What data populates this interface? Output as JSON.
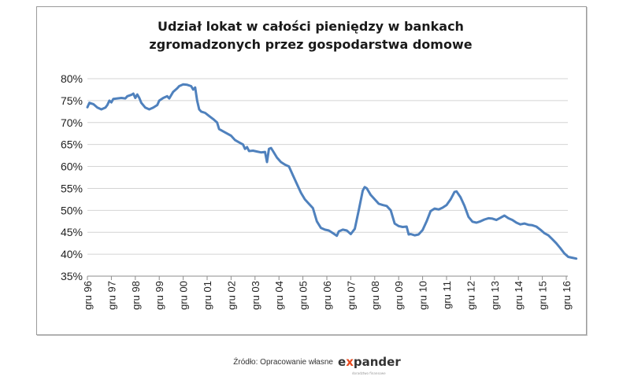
{
  "chart_data": {
    "type": "line",
    "title_lines": [
      "Udział lokat w całości pieniędzy w bankach",
      "zgromadzonych przez gospodarstwa domowe"
    ],
    "xlabel": "",
    "ylabel": "",
    "ylim": [
      35,
      80
    ],
    "y_tick_labels": [
      "35%",
      "40%",
      "45%",
      "50%",
      "55%",
      "60%",
      "65%",
      "70%",
      "75%",
      "80%"
    ],
    "x_tick_labels": [
      "gru 96",
      "gru 97",
      "gru 98",
      "gru 99",
      "gru 00",
      "gru 01",
      "gru 02",
      "gru 03",
      "gru 04",
      "gru 05",
      "gru 06",
      "gru 07",
      "gru 08",
      "gru 09",
      "gru 10",
      "gru 11",
      "gru 12",
      "gru 13",
      "gru 14",
      "gru 15",
      "gru 16"
    ],
    "grid": true,
    "legend": "none",
    "series": [
      {
        "color": "#4f81bd",
        "points": [
          [
            "1996-12",
            73.5
          ],
          [
            "1997-01",
            74.5
          ],
          [
            "1997-03",
            74.2
          ],
          [
            "1997-05",
            73.4
          ],
          [
            "1997-07",
            73.0
          ],
          [
            "1997-09",
            73.4
          ],
          [
            "1997-10",
            74.0
          ],
          [
            "1997-11",
            75.0
          ],
          [
            "1997-12",
            74.6
          ],
          [
            "1998-01",
            75.4
          ],
          [
            "1998-03",
            75.5
          ],
          [
            "1998-05",
            75.6
          ],
          [
            "1998-07",
            75.5
          ],
          [
            "1998-08",
            76.0
          ],
          [
            "1998-10",
            76.3
          ],
          [
            "1998-11",
            76.6
          ],
          [
            "1998-12",
            75.6
          ],
          [
            "1999-01",
            76.4
          ],
          [
            "1999-02",
            75.6
          ],
          [
            "1999-03",
            74.5
          ],
          [
            "1999-05",
            73.4
          ],
          [
            "1999-07",
            73.0
          ],
          [
            "1999-09",
            73.4
          ],
          [
            "1999-11",
            74.0
          ],
          [
            "1999-12",
            75.0
          ],
          [
            "2000-02",
            75.6
          ],
          [
            "2000-04",
            76.0
          ],
          [
            "2000-05",
            75.5
          ],
          [
            "2000-07",
            77.0
          ],
          [
            "2000-09",
            77.8
          ],
          [
            "2000-10",
            78.3
          ],
          [
            "2000-12",
            78.7
          ],
          [
            "2001-02",
            78.6
          ],
          [
            "2001-04",
            78.3
          ],
          [
            "2001-05",
            77.5
          ],
          [
            "2001-06",
            78.0
          ],
          [
            "2001-07",
            75.0
          ],
          [
            "2001-08",
            73.0
          ],
          [
            "2001-09",
            72.5
          ],
          [
            "2001-11",
            72.2
          ],
          [
            "2002-01",
            71.5
          ],
          [
            "2002-03",
            70.8
          ],
          [
            "2002-05",
            70.0
          ],
          [
            "2002-06",
            68.5
          ],
          [
            "2002-08",
            68.0
          ],
          [
            "2002-10",
            67.5
          ],
          [
            "2002-12",
            67.0
          ],
          [
            "2003-02",
            66.0
          ],
          [
            "2003-04",
            65.5
          ],
          [
            "2003-06",
            65.0
          ],
          [
            "2003-07",
            64.0
          ],
          [
            "2003-08",
            64.4
          ],
          [
            "2003-09",
            63.5
          ],
          [
            "2003-11",
            63.6
          ],
          [
            "2004-01",
            63.4
          ],
          [
            "2004-03",
            63.2
          ],
          [
            "2004-05",
            63.3
          ],
          [
            "2004-06",
            61.0
          ],
          [
            "2004-07",
            64.0
          ],
          [
            "2004-08",
            64.2
          ],
          [
            "2004-09",
            63.5
          ],
          [
            "2004-11",
            62.0
          ],
          [
            "2005-01",
            61.0
          ],
          [
            "2005-03",
            60.4
          ],
          [
            "2005-05",
            60.0
          ],
          [
            "2005-07",
            58.0
          ],
          [
            "2005-09",
            56.0
          ],
          [
            "2005-11",
            54.0
          ],
          [
            "2006-01",
            52.5
          ],
          [
            "2006-03",
            51.5
          ],
          [
            "2006-05",
            50.5
          ],
          [
            "2006-07",
            47.5
          ],
          [
            "2006-09",
            46.0
          ],
          [
            "2006-11",
            45.6
          ],
          [
            "2007-01",
            45.4
          ],
          [
            "2007-03",
            44.8
          ],
          [
            "2007-05",
            44.2
          ],
          [
            "2007-06",
            45.2
          ],
          [
            "2007-08",
            45.6
          ],
          [
            "2007-10",
            45.4
          ],
          [
            "2007-12",
            44.6
          ],
          [
            "2008-02",
            45.8
          ],
          [
            "2008-04",
            50.0
          ],
          [
            "2008-06",
            54.5
          ],
          [
            "2008-07",
            55.3
          ],
          [
            "2008-08",
            55.0
          ],
          [
            "2008-10",
            53.5
          ],
          [
            "2008-12",
            52.5
          ],
          [
            "2009-02",
            51.5
          ],
          [
            "2009-04",
            51.2
          ],
          [
            "2009-06",
            51.0
          ],
          [
            "2009-08",
            50.0
          ],
          [
            "2009-10",
            47.0
          ],
          [
            "2009-12",
            46.4
          ],
          [
            "2010-02",
            46.2
          ],
          [
            "2010-04",
            46.3
          ],
          [
            "2010-05",
            44.5
          ],
          [
            "2010-06",
            44.6
          ],
          [
            "2010-08",
            44.3
          ],
          [
            "2010-10",
            44.5
          ],
          [
            "2010-12",
            45.5
          ],
          [
            "2011-02",
            47.5
          ],
          [
            "2011-04",
            49.8
          ],
          [
            "2011-06",
            50.4
          ],
          [
            "2011-08",
            50.2
          ],
          [
            "2011-10",
            50.6
          ],
          [
            "2011-12",
            51.2
          ],
          [
            "2012-02",
            52.5
          ],
          [
            "2012-04",
            54.2
          ],
          [
            "2012-05",
            54.3
          ],
          [
            "2012-07",
            53.0
          ],
          [
            "2012-09",
            51.0
          ],
          [
            "2012-11",
            48.5
          ],
          [
            "2013-01",
            47.4
          ],
          [
            "2013-03",
            47.2
          ],
          [
            "2013-05",
            47.5
          ],
          [
            "2013-07",
            47.9
          ],
          [
            "2013-09",
            48.2
          ],
          [
            "2013-11",
            48.1
          ],
          [
            "2014-01",
            47.8
          ],
          [
            "2014-03",
            48.3
          ],
          [
            "2014-05",
            48.8
          ],
          [
            "2014-07",
            48.2
          ],
          [
            "2014-09",
            47.8
          ],
          [
            "2014-11",
            47.2
          ],
          [
            "2015-01",
            46.8
          ],
          [
            "2015-03",
            47.0
          ],
          [
            "2015-05",
            46.7
          ],
          [
            "2015-07",
            46.6
          ],
          [
            "2015-09",
            46.3
          ],
          [
            "2015-11",
            45.6
          ],
          [
            "2016-01",
            44.8
          ],
          [
            "2016-03",
            44.3
          ],
          [
            "2016-05",
            43.4
          ],
          [
            "2016-07",
            42.5
          ],
          [
            "2016-09",
            41.4
          ],
          [
            "2016-11",
            40.2
          ],
          [
            "2017-01",
            39.4
          ],
          [
            "2017-03",
            39.2
          ],
          [
            "2017-05",
            39.0
          ]
        ]
      }
    ]
  },
  "footer": {
    "source": "Źródło: Opracowanie własne",
    "logo_pre": "e",
    "logo_x": "x",
    "logo_post": "pander",
    "logo_sub": "doradztwo finansowe"
  }
}
